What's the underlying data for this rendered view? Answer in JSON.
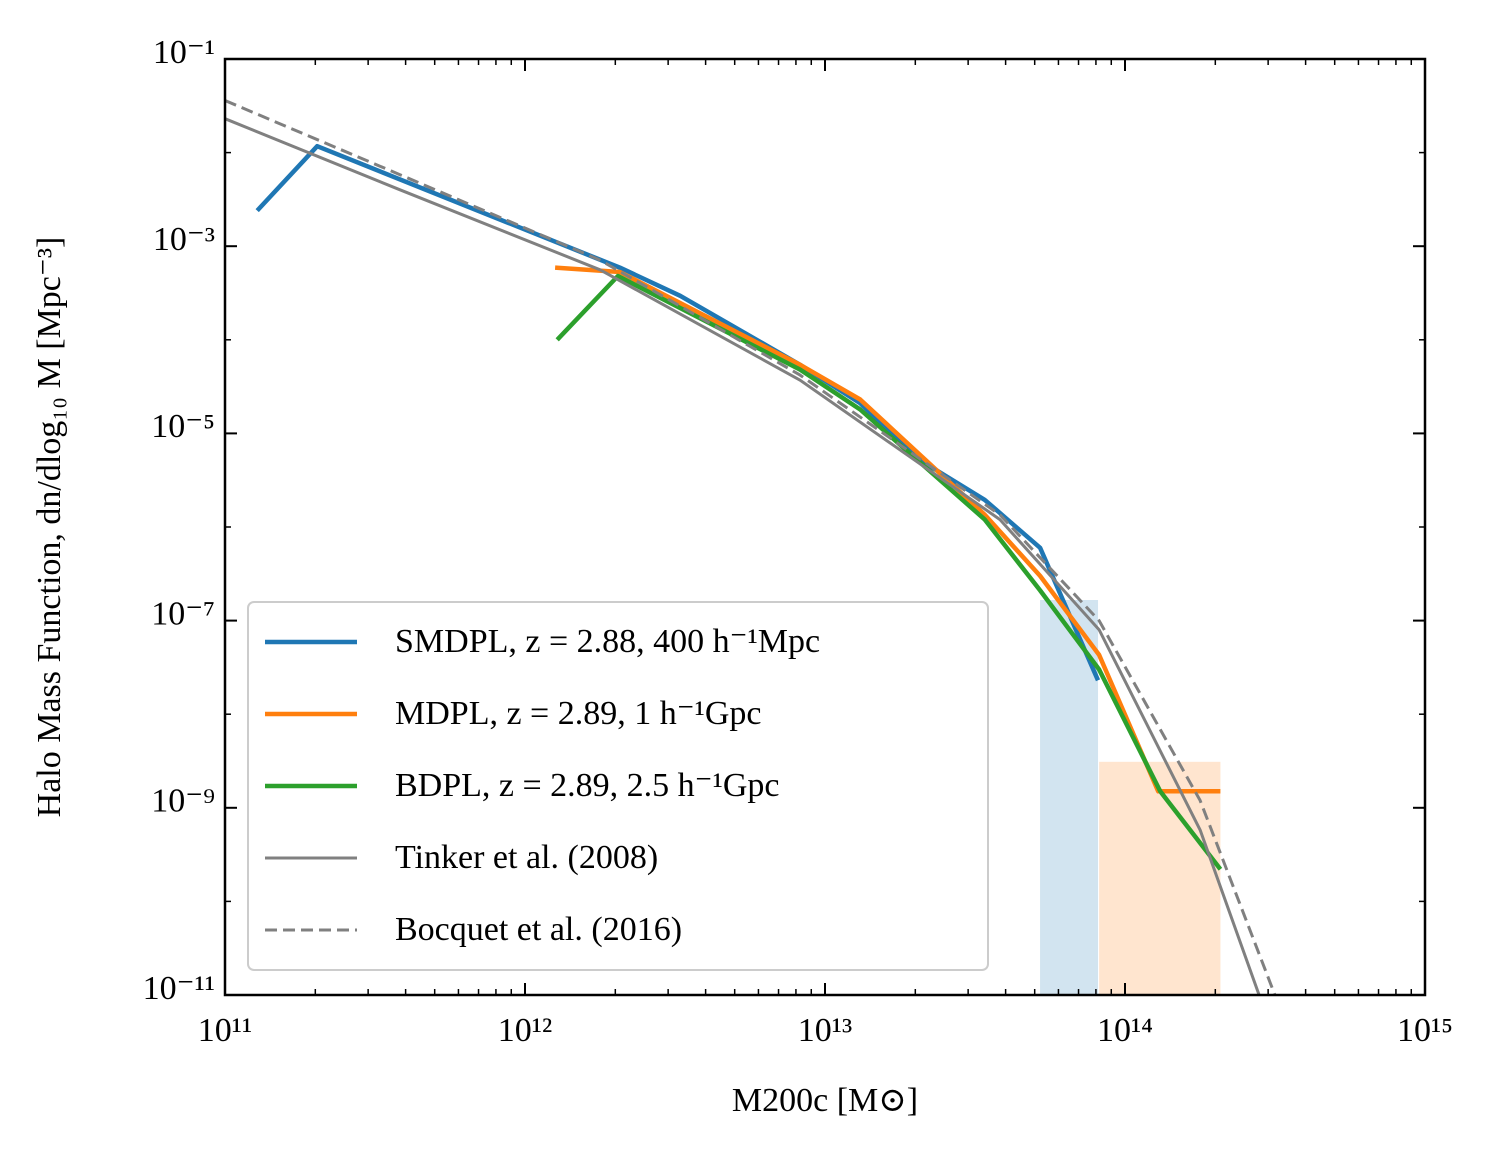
{
  "chart_data": {
    "type": "line",
    "x_label": "M200c [M⊙]",
    "y_label": "Halo Mass Function, dn/dlog₁₀ M [Mpc⁻³]",
    "xscale": "log",
    "yscale": "log",
    "xlim": [
      100000000000.0,
      1000000000000000.0
    ],
    "ylim": [
      1e-11,
      0.1
    ],
    "xticks": [
      {
        "value": 100000000000.0,
        "label": "10¹¹"
      },
      {
        "value": 1000000000000.0,
        "label": "10¹²"
      },
      {
        "value": 10000000000000.0,
        "label": "10¹³"
      },
      {
        "value": 100000000000000.0,
        "label": "10¹⁴"
      },
      {
        "value": 1000000000000000.0,
        "label": "10¹⁵"
      }
    ],
    "yticks": [
      {
        "value": 1e-11,
        "label": "10⁻¹¹"
      },
      {
        "value": 1e-09,
        "label": "10⁻⁹"
      },
      {
        "value": 1e-07,
        "label": "10⁻⁷"
      },
      {
        "value": 1e-05,
        "label": "10⁻⁵"
      },
      {
        "value": 0.001,
        "label": "10⁻³"
      },
      {
        "value": 0.1,
        "label": "10⁻¹"
      }
    ],
    "legend": "lower left",
    "series": [
      {
        "name": "SMDPL, z = 2.88, 400 h⁻¹Mpc",
        "color": "#1f77b4",
        "style": "solid",
        "x": [
          128000000000.0,
          203000000000.0,
          2070000000000.0,
          3290000000000.0,
          8260000000000.0,
          13100000000000.0,
          20700000000000.0,
          34100000000000.0,
          52100000000000.0,
          81300000000000.0
        ],
        "values": [
          0.0024,
          0.0117,
          0.00059,
          0.000295,
          5.4e-05,
          2.1e-05,
          5.2e-06,
          1.95e-06,
          6e-07,
          2.3e-08
        ],
        "band": {
          "x": [
            52100000000000.0,
            81300000000000.0
          ],
          "upper": [
            1.66e-07,
            1.66e-07
          ]
        }
      },
      {
        "name": "MDPL, z = 2.89, 1 h⁻¹Gpc",
        "color": "#ff7f0e",
        "style": "solid",
        "x": [
          1260000000000.0,
          2070000000000.0,
          8260000000000.0,
          13100000000000.0,
          34100000000000.0,
          52100000000000.0,
          82000000000000.0,
          129000000000000.0,
          208000000000000.0
        ],
        "values": [
          0.00059,
          0.00053,
          5.4e-05,
          2.3e-05,
          1.35e-06,
          3e-07,
          4.3e-08,
          1.5e-09,
          1.5e-09
        ],
        "band": {
          "x": [
            82000000000000.0,
            208000000000000.0
          ],
          "upper": [
            3.1e-09,
            3.1e-09
          ]
        }
      },
      {
        "name": "BDPL, z = 2.89, 2.5 h⁻¹Gpc",
        "color": "#2ca02c",
        "style": "solid",
        "x": [
          1280000000000.0,
          2040000000000.0,
          8260000000000.0,
          13100000000000.0,
          34100000000000.0,
          52100000000000.0,
          82000000000000.0,
          131000000000000.0,
          208000000000000.0
        ],
        "values": [
          0.0001,
          0.00048,
          4.8e-05,
          1.8e-05,
          1.2e-06,
          2.1e-07,
          3e-08,
          1.5e-09,
          2.2e-10
        ]
      },
      {
        "name": "Tinker et al. (2008)",
        "color": "#808080",
        "style": "solid",
        "x": [
          100000000000.0,
          383000000000.0,
          1780000000000.0,
          8260000000000.0,
          38300000000000.0,
          82000000000000.0,
          178000000000000.0,
          280000000000000.0
        ],
        "values": [
          0.023,
          0.004,
          0.00056,
          3.7e-05,
          1.2e-06,
          8e-08,
          5.8e-10,
          1e-11
        ]
      },
      {
        "name": "Bocquet et al. (2016)",
        "color": "#808080",
        "style": "dashed",
        "x": [
          100000000000.0,
          383000000000.0,
          1780000000000.0,
          8260000000000.0,
          38300000000000.0,
          82000000000000.0,
          178000000000000.0,
          316000000000000.0
        ],
        "values": [
          0.036,
          0.0058,
          0.00071,
          4.2e-05,
          1.35e-06,
          1e-07,
          1.2e-09,
          1e-11
        ]
      }
    ]
  }
}
